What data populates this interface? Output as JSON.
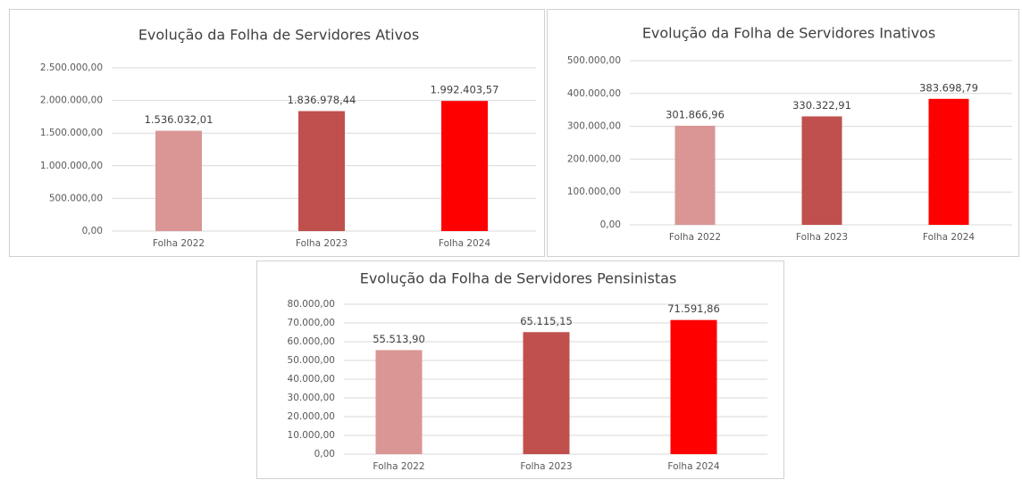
{
  "chart_data": [
    {
      "type": "bar",
      "title": "Evolução da Folha de Servidores Ativos",
      "categories": [
        "Folha 2022",
        "Folha 2023",
        "Folha 2024"
      ],
      "values": [
        1536032.01,
        1836978.44,
        1992403.57
      ],
      "value_labels": [
        "1.536.032,01",
        "1.836.978,44",
        "1.992.403,57"
      ],
      "colors": [
        "#d99694",
        "#c0504d",
        "#ff0000"
      ],
      "ylim": [
        0,
        2500000
      ],
      "yticks": [
        {
          "value": 0,
          "label": "0,00"
        },
        {
          "value": 500000,
          "label": "500.000,00"
        },
        {
          "value": 1000000,
          "label": "1.000.000,00"
        },
        {
          "value": 1500000,
          "label": "1.500.000,00"
        },
        {
          "value": 2000000,
          "label": "2.000.000,00"
        },
        {
          "value": 2500000,
          "label": "2.500.000,00"
        }
      ],
      "grid": true
    },
    {
      "type": "bar",
      "title": "Evolução da Folha de Servidores Inativos",
      "categories": [
        "Folha 2022",
        "Folha 2023",
        "Folha 2024"
      ],
      "values": [
        301866.96,
        330322.91,
        383698.79
      ],
      "value_labels": [
        "301.866,96",
        "330.322,91",
        "383.698,79"
      ],
      "colors": [
        "#d99694",
        "#c0504d",
        "#ff0000"
      ],
      "ylim": [
        0,
        500000
      ],
      "yticks": [
        {
          "value": 0,
          "label": "0,00"
        },
        {
          "value": 100000,
          "label": "100.000,00"
        },
        {
          "value": 200000,
          "label": "200.000,00"
        },
        {
          "value": 300000,
          "label": "300.000,00"
        },
        {
          "value": 400000,
          "label": "400.000,00"
        },
        {
          "value": 500000,
          "label": "500.000,00"
        }
      ],
      "grid": true
    },
    {
      "type": "bar",
      "title": "Evolução da Folha de Servidores Pensinistas",
      "categories": [
        "Folha 2022",
        "Folha 2023",
        "Folha 2024"
      ],
      "values": [
        55513.9,
        65115.15,
        71591.86
      ],
      "value_labels": [
        "55.513,90",
        "65.115,15",
        "71.591,86"
      ],
      "colors": [
        "#d99694",
        "#c0504d",
        "#ff0000"
      ],
      "ylim": [
        0,
        80000
      ],
      "yticks": [
        {
          "value": 0,
          "label": "0,00"
        },
        {
          "value": 10000,
          "label": "10.000,00"
        },
        {
          "value": 20000,
          "label": "20.000,00"
        },
        {
          "value": 30000,
          "label": "30.000,00"
        },
        {
          "value": 40000,
          "label": "40.000,00"
        },
        {
          "value": 50000,
          "label": "50.000,00"
        },
        {
          "value": 60000,
          "label": "60.000,00"
        },
        {
          "value": 70000,
          "label": "70.000,00"
        },
        {
          "value": 80000,
          "label": "80.000,00"
        }
      ],
      "grid": true
    }
  ]
}
